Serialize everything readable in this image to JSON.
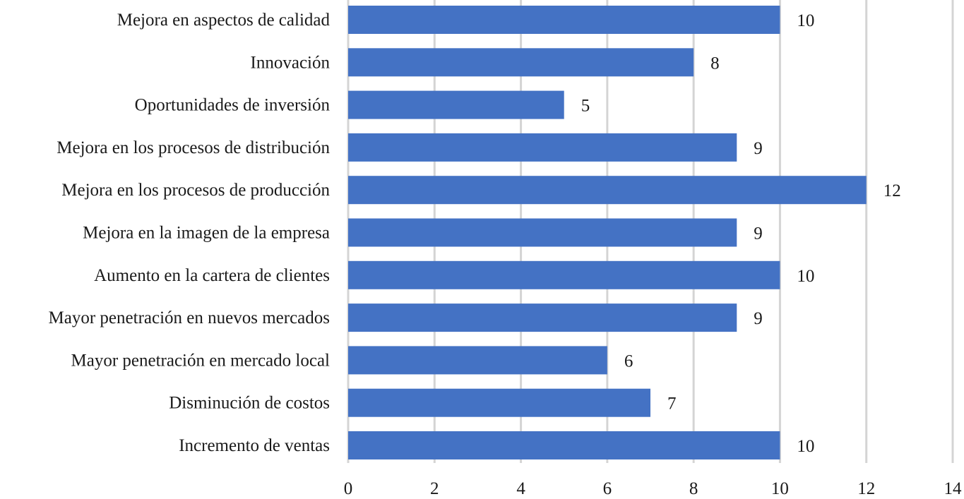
{
  "chart_data": {
    "type": "bar",
    "orientation": "horizontal",
    "categories": [
      "Mejora en aspectos de calidad",
      "Innovación",
      "Oportunidades de inversión",
      "Mejora en los procesos de distribución",
      "Mejora en los procesos de producción",
      "Mejora en la imagen de la empresa",
      "Aumento en la cartera de clientes",
      "Mayor penetración en nuevos mercados",
      "Mayor penetración en mercado local",
      "Disminución de costos",
      "Incremento de ventas"
    ],
    "values": [
      10,
      8,
      5,
      9,
      12,
      9,
      10,
      9,
      6,
      7,
      10
    ],
    "data_labels": [
      "10",
      "8",
      "5",
      "9",
      "12",
      "9",
      "10",
      "9",
      "6",
      "7",
      "10"
    ],
    "xticks": [
      "0",
      "2",
      "4",
      "6",
      "8",
      "10",
      "12",
      "14"
    ],
    "xlim": [
      0,
      14
    ],
    "grid": "vertical",
    "legend": "none",
    "title": "",
    "xlabel": "",
    "ylabel": "",
    "bar_color": "#4472c4"
  }
}
